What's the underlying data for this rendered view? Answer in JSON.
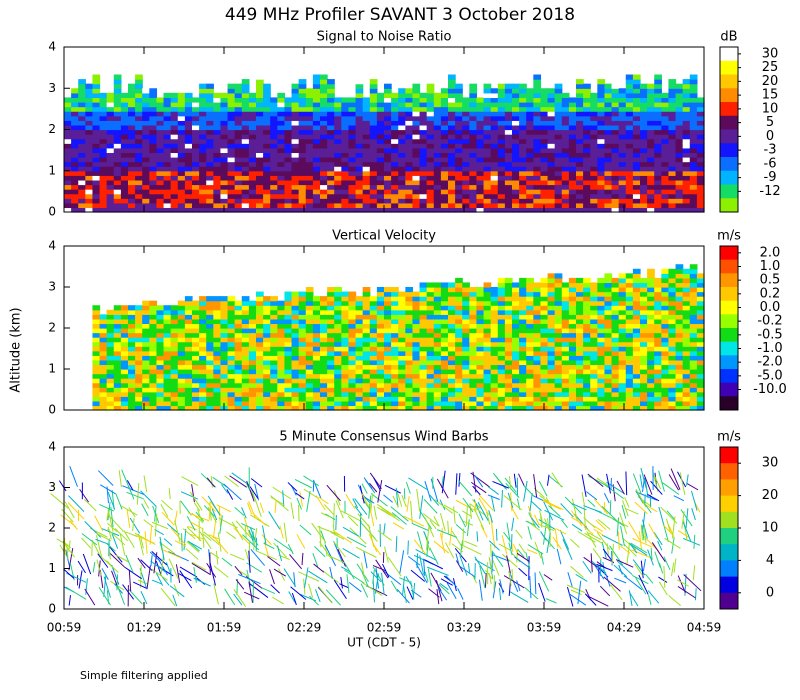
{
  "title": "449 MHz Profiler SAVANT  3 October 2018",
  "ylabel": "Altitude (km)",
  "xlabel": "UT  (CDT - 5)",
  "xticks": [
    "00:59",
    "01:29",
    "01:59",
    "02:29",
    "02:59",
    "03:29",
    "03:59",
    "04:29",
    "04:59"
  ],
  "footnote": "Simple filtering applied",
  "chart_data": [
    {
      "type": "heatmap",
      "title": "Signal to Noise Ratio",
      "ylim": [
        0,
        4
      ],
      "yticks": [
        0,
        1,
        2,
        3,
        4
      ],
      "colorbar": {
        "unit": "dB",
        "colors": [
          "#ffffff",
          "#ffff00",
          "#ffc800",
          "#ff8c00",
          "#ff2000",
          "#5c0a5c",
          "#5a1e96",
          "#1414ff",
          "#0a6eff",
          "#00b4ff",
          "#14dc64",
          "#8cf000"
        ],
        "ticks": [
          30,
          25,
          20,
          15,
          10,
          5,
          0,
          -3,
          -6,
          -9,
          -12
        ]
      }
    },
    {
      "type": "heatmap",
      "title": "Vertical Velocity",
      "ylim": [
        0,
        4
      ],
      "yticks": [
        0,
        1,
        2,
        3,
        4
      ],
      "colorbar": {
        "unit": "m/s",
        "colors": [
          "#ff0000",
          "#ff5000",
          "#ff9600",
          "#ffc800",
          "#ffff00",
          "#96ff00",
          "#14dc14",
          "#00e6e6",
          "#0096ff",
          "#0032ff",
          "#4000b4",
          "#280028"
        ],
        "ticks": [
          {
            "value": 2,
            "label": "2.0"
          },
          {
            "value": 1,
            "label": "1.0"
          },
          0.5,
          0.2,
          {
            "value": 0,
            "label": "0.0"
          },
          -0.2,
          -0.5,
          {
            "value": -1,
            "label": "-1.0"
          },
          {
            "value": -2,
            "label": "-2.0"
          },
          {
            "value": -5,
            "label": "-5.0"
          },
          {
            "value": -10,
            "label": "-10.0"
          }
        ]
      }
    },
    {
      "type": "barbs",
      "title": "5 Minute Consensus Wind Barbs",
      "ylim": [
        0,
        4
      ],
      "yticks": [
        0,
        1,
        2,
        3,
        4
      ],
      "colorbar": {
        "unit": "m/s",
        "colors": [
          "#ff0000",
          "#ff6000",
          "#ffa000",
          "#ffd000",
          "#a0e020",
          "#20d080",
          "#00b4c8",
          "#0080ff",
          "#0000e0",
          "#500090"
        ],
        "ticks": [
          30,
          20,
          10,
          4,
          0
        ]
      }
    }
  ]
}
